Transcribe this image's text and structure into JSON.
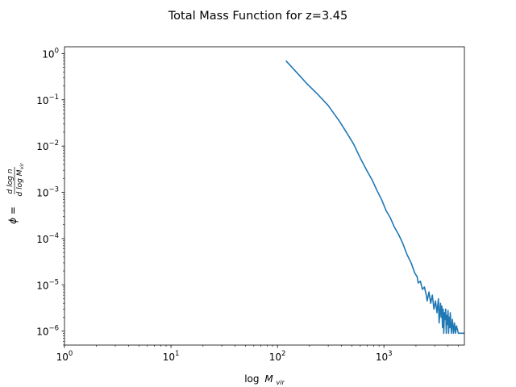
{
  "chart_data": {
    "type": "line",
    "title": "Total Mass Function for z=3.45",
    "xlabel": {
      "prefix": "log",
      "var": "M",
      "sub": "vir"
    },
    "ylabel": {
      "lhs": "ϕ =",
      "num": "d log n",
      "den": "d log M",
      "den_sub": "vir"
    },
    "xscale": "log",
    "yscale": "log",
    "xlim": [
      1,
      5700
    ],
    "ylim": [
      5e-07,
      1.4
    ],
    "grid": false,
    "x_ticks": [
      {
        "value": 1,
        "base": "10",
        "exp": "0"
      },
      {
        "value": 10,
        "base": "10",
        "exp": "1"
      },
      {
        "value": 100,
        "base": "10",
        "exp": "2"
      },
      {
        "value": 1000,
        "base": "10",
        "exp": "3"
      }
    ],
    "y_ticks": [
      {
        "value": 1,
        "base": "10",
        "exp": "0"
      },
      {
        "value": 0.1,
        "base": "10",
        "exp": "−1"
      },
      {
        "value": 0.01,
        "base": "10",
        "exp": "−2"
      },
      {
        "value": 0.001,
        "base": "10",
        "exp": "−3"
      },
      {
        "value": 0.0001,
        "base": "10",
        "exp": "−4"
      },
      {
        "value": 1e-05,
        "base": "10",
        "exp": "−5"
      },
      {
        "value": 1e-06,
        "base": "10",
        "exp": "−6"
      }
    ],
    "series": [
      {
        "color": "#1f77b4",
        "x": [
          120,
          150,
          190,
          240,
          300,
          380,
          450,
          520,
          600,
          700,
          780,
          860,
          950,
          1050,
          1150,
          1250,
          1380,
          1500,
          1650,
          1800,
          1950,
          2050,
          2100,
          2200,
          2300,
          2400,
          2500,
          2550,
          2650,
          2750,
          2850,
          2950,
          3050,
          3150,
          3250,
          3300,
          3400,
          3450,
          3500,
          3550,
          3600,
          3650,
          3700,
          3750,
          3800,
          3850,
          3900,
          3950,
          4000,
          4050,
          4100,
          4150,
          4200,
          4300,
          4400,
          4500,
          4600,
          4700,
          4800,
          5000,
          5200,
          5400,
          5700
        ],
        "y": [
          0.7,
          0.4,
          0.22,
          0.13,
          0.075,
          0.035,
          0.019,
          0.011,
          0.0055,
          0.0028,
          0.0018,
          0.0011,
          0.0007,
          0.0004,
          0.00028,
          0.00018,
          0.00012,
          8e-05,
          4.5e-05,
          3e-05,
          1.8e-05,
          1.5e-05,
          1.1e-05,
          1.2e-05,
          8e-06,
          9e-06,
          6e-06,
          4.5e-06,
          7e-06,
          4e-06,
          6e-06,
          3e-06,
          4.5e-06,
          2.5e-06,
          5e-06,
          1.5e-06,
          4e-06,
          2e-06,
          3.5e-06,
          1.2e-06,
          3e-06,
          9e-07,
          2.5e-06,
          1.8e-06,
          3e-06,
          9e-07,
          2.2e-06,
          1.4e-06,
          2.8e-06,
          9e-07,
          2e-06,
          1.2e-06,
          2.5e-06,
          9e-07,
          1.8e-06,
          9e-07,
          1.5e-06,
          9e-07,
          1.3e-06,
          9e-07,
          9e-07,
          9e-07,
          9e-07
        ]
      }
    ]
  }
}
